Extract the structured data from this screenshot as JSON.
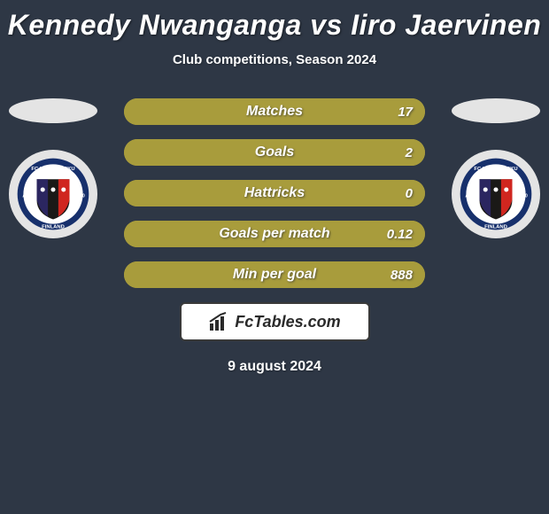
{
  "title": "Kennedy Nwanganga vs Iiro Jaervinen",
  "subtitle": "Club competitions, Season 2024",
  "date": "9 august 2024",
  "logo_text": "FcTables.com",
  "colors": {
    "background": "#2e3745",
    "ellipse": "#e4e4e4",
    "badge_bg": "#e4e4e4",
    "bar_track": "#a89c3c",
    "bar_left": "#a89c3c",
    "bar_right": "#a89c3c",
    "logo_box_bg": "#ffffff",
    "logo_box_border": "#3a3a3a"
  },
  "bars": [
    {
      "label": "Matches",
      "left_val": "",
      "right_val": "17",
      "left_pct": 100,
      "right_pct": 0
    },
    {
      "label": "Goals",
      "left_val": "",
      "right_val": "2",
      "left_pct": 100,
      "right_pct": 0
    },
    {
      "label": "Hattricks",
      "left_val": "",
      "right_val": "0",
      "left_pct": 100,
      "right_pct": 0
    },
    {
      "label": "Goals per match",
      "left_val": "",
      "right_val": "0.12",
      "left_pct": 100,
      "right_pct": 0
    },
    {
      "label": "Min per goal",
      "left_val": "",
      "right_val": "888",
      "left_pct": 100,
      "right_pct": 0
    }
  ],
  "club_badge": {
    "top_text": "FC INTER TURKU",
    "bottom_text": "FINLAND",
    "left_text": "A.D",
    "right_text": "1990",
    "shield_colors": [
      "#2b2660",
      "#d0261f",
      "#1a1917"
    ],
    "star_color": "#ffffff",
    "ribbon_color": "#17306c"
  }
}
